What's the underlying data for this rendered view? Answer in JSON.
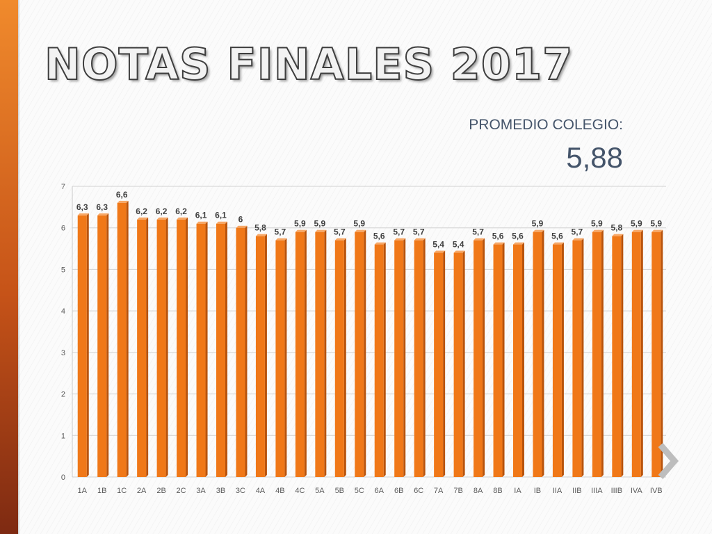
{
  "slide": {
    "title": "NOTAS FINALES 2017",
    "average_label": "PROMEDIO COLEGIO:",
    "average_value": "5,88",
    "accent_color": "#f07818",
    "next_icon": "chevron-right-icon"
  },
  "chart_data": {
    "type": "bar",
    "categories": [
      "1A",
      "1B",
      "1C",
      "2A",
      "2B",
      "2C",
      "3A",
      "3B",
      "3C",
      "4A",
      "4B",
      "4C",
      "5A",
      "5B",
      "5C",
      "6A",
      "6B",
      "6C",
      "7A",
      "7B",
      "8A",
      "8B",
      "IA",
      "IB",
      "IIA",
      "IIB",
      "IIIA",
      "IIIB",
      "IVA",
      "IVB"
    ],
    "values": [
      6.3,
      6.3,
      6.6,
      6.2,
      6.2,
      6.2,
      6.1,
      6.1,
      6,
      5.8,
      5.7,
      5.9,
      5.9,
      5.7,
      5.9,
      5.6,
      5.7,
      5.7,
      5.4,
      5.4,
      5.7,
      5.6,
      5.6,
      5.9,
      5.6,
      5.7,
      5.9,
      5.8,
      5.9,
      5.9
    ],
    "data_labels": [
      "6,3",
      "6,3",
      "6,6",
      "6,2",
      "6,2",
      "6,2",
      "6,1",
      "6,1",
      "6",
      "5,8",
      "5,7",
      "5,9",
      "5,9",
      "5,7",
      "5,9",
      "5,6",
      "5,7",
      "5,7",
      "5,4",
      "5,4",
      "5,7",
      "5,6",
      "5,6",
      "5,9",
      "5,6",
      "5,7",
      "5,9",
      "5,8",
      "5,9",
      "5,9"
    ],
    "yticks": [
      "0",
      "1",
      "2",
      "3",
      "4",
      "5",
      "6",
      "7"
    ],
    "ylim": [
      0,
      7
    ],
    "grid": true,
    "legend": "none",
    "bar_color": "#f07818"
  }
}
